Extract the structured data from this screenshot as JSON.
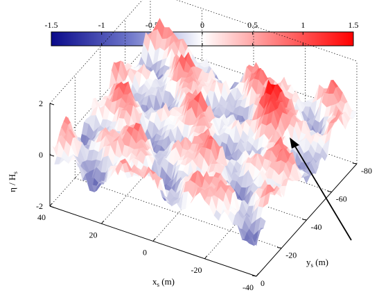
{
  "chart_data": {
    "type": "surface",
    "title": "",
    "colorbar": {
      "ticks": [
        -1.5,
        -1,
        -0.5,
        0,
        0.5,
        1,
        1.5
      ],
      "tick_labels": [
        "-1.5",
        "-1",
        "-0.5",
        "0",
        "0.5",
        "1",
        "1.5"
      ],
      "range": [
        -1.5,
        1.5
      ],
      "colormap": {
        "low": "#0a0a8a",
        "mid": "#ffffff",
        "high": "#ff0000"
      },
      "placement": "top"
    },
    "xlabel": "x",
    "xlabel_sub": "s",
    "xlabel_unit": " (m)",
    "ylabel": "y",
    "ylabel_sub": "s",
    "ylabel_unit": " (m)",
    "zlabel": "η / H",
    "zlabel_sub": "s",
    "x_ticks": [
      "40",
      "20",
      "0",
      "-20",
      "-40"
    ],
    "y_ticks": [
      "0",
      "-20",
      "-40",
      "-60",
      "-80"
    ],
    "z_ticks": [
      "2",
      "0",
      "-2"
    ],
    "xlim": [
      -40,
      40
    ],
    "ylim": [
      -80,
      0
    ],
    "zlim": [
      -2,
      2
    ],
    "grid": true,
    "annotation": "arrow pointing to highest wave crest"
  }
}
